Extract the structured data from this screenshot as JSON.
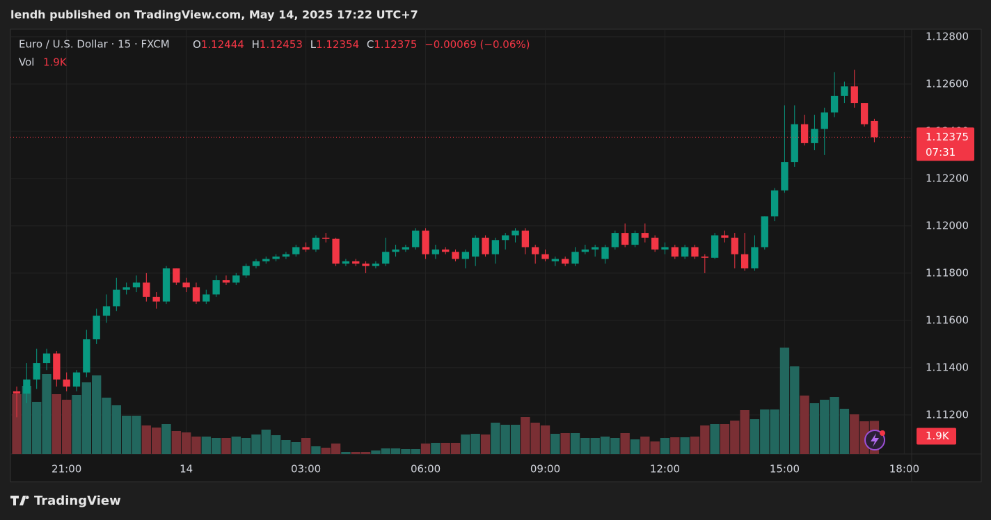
{
  "header": {
    "publisher": "lendh published on TradingView.com, May 14, 2025 17:22 UTC+7",
    "logo": "TradingView"
  },
  "chart_data": {
    "type": "candlestick",
    "title": "Euro / U.S. Dollar · 15 · FXCM",
    "ohlc_labels": {
      "open": "O",
      "high": "H",
      "low": "L",
      "close": "C"
    },
    "change": "−0.00069 (−0.06%)",
    "volume_title": "Vol",
    "volume_label": "1.9K",
    "countdown": "07:31",
    "up_color": "#089981",
    "down_color": "#f23645",
    "volume_up_color": "#22675e",
    "volume_down_color": "#7a2f34",
    "open": [
      1.113,
      1.1129,
      1.1135,
      1.1142,
      1.1146,
      1.1135,
      1.1132,
      1.1138,
      1.1152,
      1.1162,
      1.1166,
      1.1173,
      1.1174,
      1.1176,
      1.117,
      1.1168,
      1.1182,
      1.1176,
      1.1174,
      1.1168,
      1.1171,
      1.1177,
      1.1176,
      1.1179,
      1.1183,
      1.1185,
      1.1186,
      1.1187,
      1.1188,
      1.1191,
      1.119,
      1.1195,
      1.11945,
      1.1184,
      1.1185,
      1.1184,
      1.1183,
      1.1184,
      1.1189,
      1.119,
      1.1191,
      1.1198,
      1.1188,
      1.119,
      1.1189,
      1.1186,
      1.1187,
      1.1195,
      1.1188,
      1.1194,
      1.1196,
      1.1198,
      1.1191,
      1.1188,
      1.1185,
      1.1186,
      1.1184,
      1.1189,
      1.119,
      1.1186,
      1.1191,
      1.1197,
      1.1192,
      1.1197,
      1.1195,
      1.119,
      1.1191,
      1.1187,
      1.1191,
      1.1187,
      1.11865,
      1.1196,
      1.1195,
      1.1188,
      1.1182,
      1.1191,
      1.1204,
      1.1215,
      1.1227,
      1.1243,
      1.1235,
      1.1241,
      1.1248,
      1.1255,
      1.1259,
      1.1252,
      1.12444
    ],
    "high": [
      1.1132,
      1.1142,
      1.1148,
      1.1148,
      1.1147,
      1.1138,
      1.1139,
      1.1156,
      1.1165,
      1.1171,
      1.1178,
      1.1176,
      1.1179,
      1.118,
      1.1172,
      1.1183,
      1.1182,
      1.1178,
      1.1176,
      1.1173,
      1.1179,
      1.1179,
      1.118,
      1.1184,
      1.1186,
      1.1187,
      1.1188,
      1.1189,
      1.1192,
      1.1193,
      1.1196,
      1.1197,
      1.1195,
      1.1186,
      1.1186,
      1.1185,
      1.1185,
      1.1195,
      1.1192,
      1.1192,
      1.1199,
      1.1199,
      1.1192,
      1.1191,
      1.119,
      1.119,
      1.1196,
      1.1196,
      1.1195,
      1.1197,
      1.1199,
      1.1199,
      1.1192,
      1.119,
      1.1187,
      1.1187,
      1.1191,
      1.1192,
      1.1192,
      1.1192,
      1.1198,
      1.1201,
      1.1198,
      1.1201,
      1.1196,
      1.1193,
      1.1192,
      1.1192,
      1.1192,
      1.1188,
      1.1197,
      1.1198,
      1.1197,
      1.1197,
      1.1196,
      1.1204,
      1.1216,
      1.1251,
      1.1251,
      1.1247,
      1.1247,
      1.125,
      1.1265,
      1.1261,
      1.1266,
      1.1252,
      1.12453
    ],
    "low": [
      1.1119,
      1.1125,
      1.1131,
      1.1139,
      1.1132,
      1.113,
      1.113,
      1.1136,
      1.115,
      1.1159,
      1.1164,
      1.1171,
      1.1172,
      1.1168,
      1.1165,
      1.1167,
      1.1175,
      1.1172,
      1.1167,
      1.1167,
      1.117,
      1.1175,
      1.1175,
      1.1178,
      1.1182,
      1.1184,
      1.1185,
      1.1186,
      1.1187,
      1.1189,
      1.1189,
      1.1193,
      1.1183,
      1.1183,
      1.1183,
      1.118,
      1.1182,
      1.1183,
      1.1187,
      1.1189,
      1.119,
      1.1186,
      1.1186,
      1.1188,
      1.1185,
      1.1182,
      1.1183,
      1.1187,
      1.1184,
      1.119,
      1.1193,
      1.1188,
      1.1184,
      1.1185,
      1.1183,
      1.1183,
      1.1183,
      1.1188,
      1.1187,
      1.1184,
      1.119,
      1.1191,
      1.1191,
      1.1193,
      1.1189,
      1.1188,
      1.1186,
      1.1186,
      1.1186,
      1.118,
      1.1186,
      1.1193,
      1.1182,
      1.1181,
      1.1181,
      1.119,
      1.1202,
      1.1214,
      1.1225,
      1.1234,
      1.1232,
      1.123,
      1.1246,
      1.1252,
      1.125,
      1.1242,
      1.12354
    ],
    "close": [
      1.1129,
      1.1135,
      1.1142,
      1.1146,
      1.1135,
      1.1132,
      1.1138,
      1.1152,
      1.1162,
      1.1166,
      1.1173,
      1.1174,
      1.1176,
      1.117,
      1.1168,
      1.1182,
      1.1176,
      1.1174,
      1.1168,
      1.1171,
      1.1177,
      1.1176,
      1.1179,
      1.1183,
      1.1185,
      1.1186,
      1.1187,
      1.1188,
      1.1191,
      1.119,
      1.1195,
      1.11945,
      1.1184,
      1.1185,
      1.1184,
      1.1183,
      1.1184,
      1.1189,
      1.119,
      1.1191,
      1.1198,
      1.1188,
      1.119,
      1.1189,
      1.1186,
      1.1189,
      1.1195,
      1.1188,
      1.1194,
      1.1196,
      1.1198,
      1.1191,
      1.1188,
      1.1186,
      1.1186,
      1.1184,
      1.1189,
      1.119,
      1.1191,
      1.1191,
      1.1197,
      1.1192,
      1.1197,
      1.1195,
      1.119,
      1.1191,
      1.1187,
      1.1191,
      1.1187,
      1.11865,
      1.1196,
      1.1195,
      1.1188,
      1.1182,
      1.1191,
      1.1204,
      1.1215,
      1.1227,
      1.1243,
      1.1235,
      1.1241,
      1.1248,
      1.1255,
      1.1259,
      1.1252,
      1.1243,
      1.12375
    ],
    "volume": [
      3440,
      3920,
      3000,
      4600,
      3440,
      3120,
      3400,
      4120,
      4520,
      3240,
      2800,
      2200,
      2200,
      1640,
      1520,
      1720,
      1320,
      1240,
      1000,
      1000,
      920,
      920,
      1000,
      920,
      1120,
      1400,
      1080,
      800,
      680,
      920,
      440,
      360,
      600,
      120,
      120,
      120,
      200,
      320,
      320,
      280,
      280,
      600,
      640,
      640,
      640,
      1120,
      1160,
      1120,
      1800,
      1680,
      1680,
      2120,
      1800,
      1640,
      1160,
      1200,
      1200,
      920,
      920,
      1000,
      920,
      1200,
      840,
      1000,
      720,
      920,
      960,
      960,
      1000,
      1640,
      1720,
      1720,
      1920,
      2520,
      2000,
      2560,
      2560,
      6120,
      5040,
      3360,
      2920,
      3120,
      3280,
      2600,
      2280,
      1880,
      1900
    ],
    "xlim": [
      -0.63,
      89.74
    ],
    "xticks": [
      {
        "value": 5,
        "label": "21:00"
      },
      {
        "value": 17,
        "label": "14"
      },
      {
        "value": 29,
        "label": "03:00"
      },
      {
        "value": 41,
        "label": "06:00"
      },
      {
        "value": 53,
        "label": "09:00"
      },
      {
        "value": 65,
        "label": "12:00"
      },
      {
        "value": 77,
        "label": "15:00"
      },
      {
        "value": 89,
        "label": "18:00"
      }
    ],
    "ylim": [
      1.11035,
      1.12832
    ],
    "yticks": [
      {
        "value": 1.128,
        "label": "1.12800"
      },
      {
        "value": 1.126,
        "label": "1.12600"
      },
      {
        "value": 1.124,
        "label": "1.12400"
      },
      {
        "value": 1.122,
        "label": "1.12200"
      },
      {
        "value": 1.12,
        "label": "1.12000"
      },
      {
        "value": 1.118,
        "label": "1.11800"
      },
      {
        "value": 1.116,
        "label": "1.11600"
      },
      {
        "value": 1.114,
        "label": "1.11400"
      },
      {
        "value": 1.112,
        "label": "1.11200"
      }
    ],
    "grid": true
  }
}
